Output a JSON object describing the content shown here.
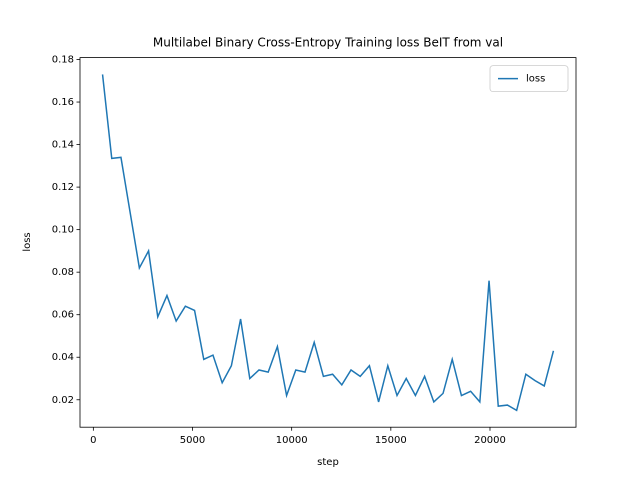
{
  "chart_data": {
    "type": "line",
    "title": "Multilabel Binary Cross-Entropy Training loss BeIT from val",
    "x_label": "step",
    "y_label": "loss",
    "x": [
      464,
      928,
      1392,
      1856,
      2320,
      2784,
      3248,
      3712,
      4176,
      4640,
      5104,
      5568,
      6032,
      6496,
      6960,
      7424,
      7888,
      8352,
      8816,
      9280,
      9744,
      10208,
      10672,
      11136,
      11600,
      12064,
      12528,
      12992,
      13456,
      13920,
      14384,
      14848,
      15312,
      15776,
      16240,
      16704,
      17168,
      17632,
      18096,
      18560,
      19024,
      19488,
      19952,
      20416,
      20880,
      21344,
      21808,
      22272,
      22736,
      23200
    ],
    "series": [
      {
        "name": "loss",
        "color": "#1f77b4",
        "values": [
          0.173,
          0.1335,
          0.134,
          0.108,
          0.082,
          0.09,
          0.059,
          0.069,
          0.057,
          0.064,
          0.062,
          0.039,
          0.041,
          0.028,
          0.036,
          0.058,
          0.03,
          0.034,
          0.033,
          0.045,
          0.022,
          0.034,
          0.033,
          0.047,
          0.031,
          0.032,
          0.027,
          0.034,
          0.031,
          0.036,
          0.019,
          0.036,
          0.022,
          0.03,
          0.022,
          0.031,
          0.019,
          0.023,
          0.039,
          0.022,
          0.024,
          0.019,
          0.076,
          0.017,
          0.0175,
          0.015,
          0.032,
          0.029,
          0.0265,
          0.043
        ]
      }
    ],
    "xlim": [
      -673,
      24337
    ],
    "xticks": [
      0,
      5000,
      10000,
      15000,
      20000
    ],
    "ylim": [
      0.0071,
      0.1809
    ],
    "yticks": [
      0.02,
      0.04,
      0.06,
      0.08,
      {
        "value": 0.1,
        "label": "0.10"
      },
      0.12,
      0.14,
      0.16,
      0.18
    ],
    "legend": "upper right",
    "grid": false
  }
}
